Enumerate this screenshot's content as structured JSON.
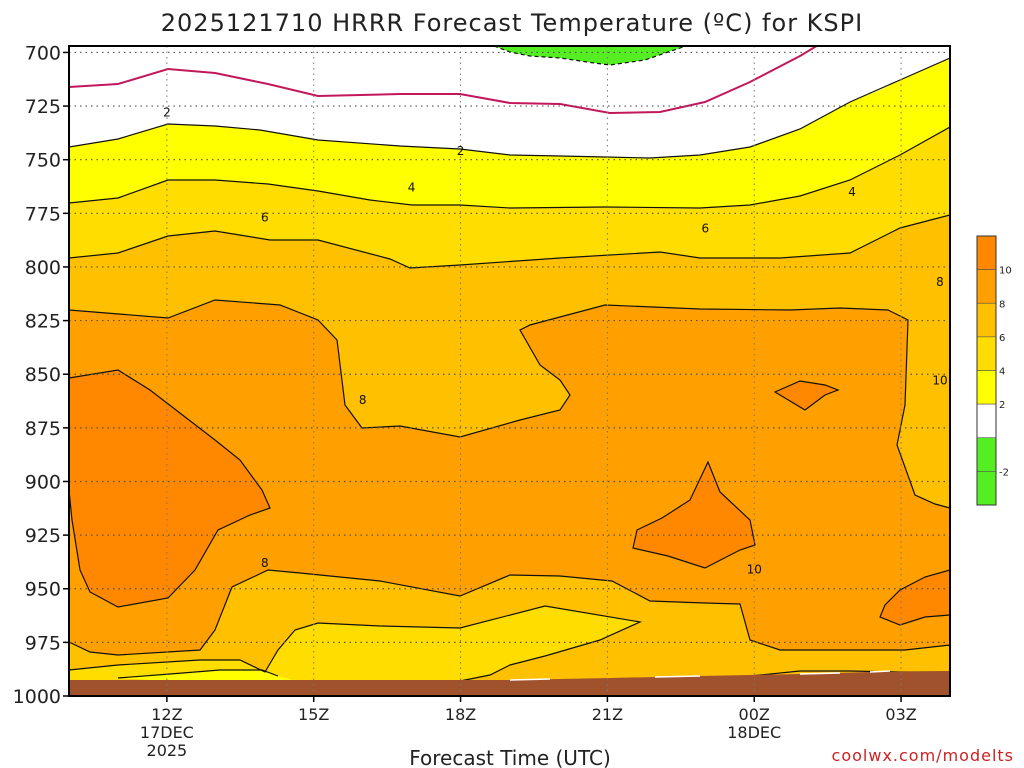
{
  "title": "2025121710 HRRR Forecast Temperature (ºC) for KSPI",
  "credit": "coolwx.com/modelts",
  "chart_data": {
    "type": "contour",
    "title": "2025121710 HRRR Forecast Temperature (ºC) for KSPI",
    "xlabel": "Forecast Time (UTC)",
    "ylabel": "",
    "x_ticks": [
      {
        "label": "12Z",
        "sub1": "17DEC",
        "sub2": "2025",
        "hour": 12
      },
      {
        "label": "15Z",
        "sub1": "",
        "sub2": "",
        "hour": 15
      },
      {
        "label": "18Z",
        "sub1": "",
        "sub2": "",
        "hour": 18
      },
      {
        "label": "21Z",
        "sub1": "",
        "sub2": "",
        "hour": 21
      },
      {
        "label": "00Z",
        "sub1": "18DEC",
        "sub2": "",
        "hour": 24
      },
      {
        "label": "03Z",
        "sub1": "",
        "sub2": "",
        "hour": 27
      }
    ],
    "xlim_hours": [
      10,
      28
    ],
    "y_ticks": [
      700,
      725,
      750,
      775,
      800,
      825,
      850,
      875,
      900,
      925,
      950,
      975,
      1000
    ],
    "ylim": [
      1000,
      697
    ],
    "y_reversed": true,
    "grid": true,
    "colorbar": {
      "labels": [
        "-2",
        "2",
        "4",
        "6",
        "8",
        "10"
      ],
      "bins": [
        {
          "range": [
            -4,
            -2
          ],
          "color": "#55ee22"
        },
        {
          "range": [
            -2,
            0
          ],
          "color": "#55ee22"
        },
        {
          "range": [
            0,
            2
          ],
          "color": "#ffffff"
        },
        {
          "range": [
            2,
            4
          ],
          "color": "#ffff00"
        },
        {
          "range": [
            4,
            6
          ],
          "color": "#ffdd00"
        },
        {
          "range": [
            6,
            8
          ],
          "color": "#ffc000"
        },
        {
          "range": [
            8,
            10
          ],
          "color": "#ffa000"
        },
        {
          "range": [
            10,
            12
          ],
          "color": "#ff8800"
        }
      ]
    },
    "contour_labels": [
      {
        "text": "2",
        "hour": 12.0,
        "p": 728
      },
      {
        "text": "2",
        "hour": 18.0,
        "p": 746
      },
      {
        "text": "4",
        "hour": 17.0,
        "p": 763
      },
      {
        "text": "4",
        "hour": 26.0,
        "p": 765
      },
      {
        "text": "6",
        "hour": 14.0,
        "p": 777
      },
      {
        "text": "6",
        "hour": 23.0,
        "p": 782
      },
      {
        "text": "8",
        "hour": 16.0,
        "p": 862
      },
      {
        "text": "8",
        "hour": 28.0,
        "p": 807
      },
      {
        "text": "8",
        "hour": 14.0,
        "p": 938
      },
      {
        "text": "10",
        "hour": 28.0,
        "p": 853
      },
      {
        "text": "10",
        "hour": 24.0,
        "p": 941
      }
    ],
    "surface_color": "#a0522d",
    "freezing_line_color": "#c2185b"
  }
}
